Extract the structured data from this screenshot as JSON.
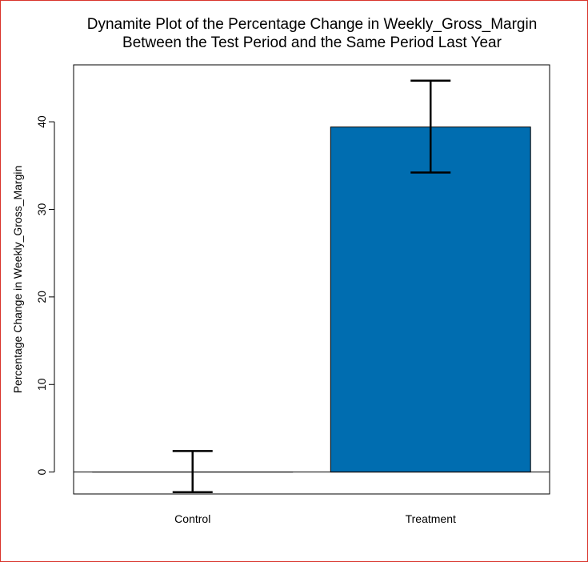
{
  "chart_data": {
    "type": "bar",
    "title": [
      "Dynamite Plot of the Percentage Change in Weekly_Gross_Margin",
      "Between the Test Period and the Same Period Last Year"
    ],
    "xlabel": "",
    "ylabel": "Percentage Change in Weekly_Gross_Margin",
    "categories": [
      "Control",
      "Treatment"
    ],
    "values": [
      0.0,
      39.4
    ],
    "error_bars": {
      "lower": [
        -2.3,
        34.2
      ],
      "upper": [
        2.4,
        44.7
      ]
    },
    "ylim": [
      -2.5,
      46.5
    ],
    "yticks": [
      0,
      10,
      20,
      30,
      40
    ],
    "grid": false,
    "legend": "none",
    "colors": {
      "bar_fill": "#006DB0",
      "bar_stroke": "#000000",
      "reference_line": "#000000",
      "frame_border": "#D9342B"
    }
  }
}
